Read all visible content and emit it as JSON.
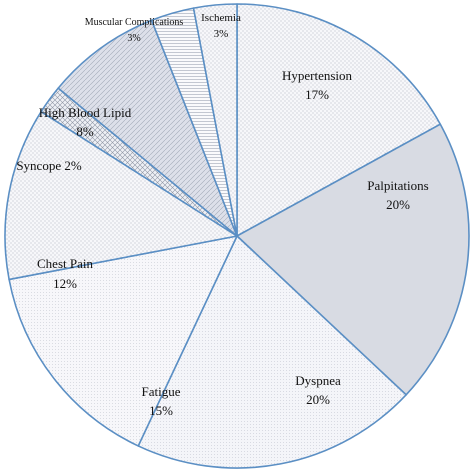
{
  "chart_data": {
    "type": "pie",
    "start_angle_deg": 0,
    "direction": "clockwise",
    "slices": [
      {
        "label": "Hypertension",
        "value_text": "17%",
        "value": 17,
        "fill": "#f7f7fa",
        "pattern": "dots"
      },
      {
        "label": "Palpitations",
        "value_text": "20%",
        "value": 20,
        "fill": "#d8dbe3",
        "pattern": "none"
      },
      {
        "label": "Dyspnea",
        "value_text": "20%",
        "value": 20,
        "fill": "#f4f5f9",
        "pattern": "fine"
      },
      {
        "label": "Fatigue",
        "value_text": "15%",
        "value": 15,
        "fill": "#f7f7fa",
        "pattern": "fine"
      },
      {
        "label": "Chest Pain",
        "value_text": "12%",
        "value": 12,
        "fill": "#f7f7fa",
        "pattern": "dots"
      },
      {
        "label": "Syncope",
        "value_text": "2%",
        "value": 2,
        "fill": "#eef0f5",
        "pattern": "cross"
      },
      {
        "label": "High Blood Lipid",
        "value_text": "8%",
        "value": 8,
        "fill": "#dde0ea",
        "pattern": "diag"
      },
      {
        "label": "Muscular Complications",
        "value_text": "3%",
        "value": 3,
        "fill": "#fafafc",
        "pattern": "hlines"
      },
      {
        "label": "Ischemia",
        "value_text": "3%",
        "value": 3,
        "fill": "#f7f7fa",
        "pattern": "dots"
      }
    ],
    "edge_color": "#5b8fc4"
  }
}
